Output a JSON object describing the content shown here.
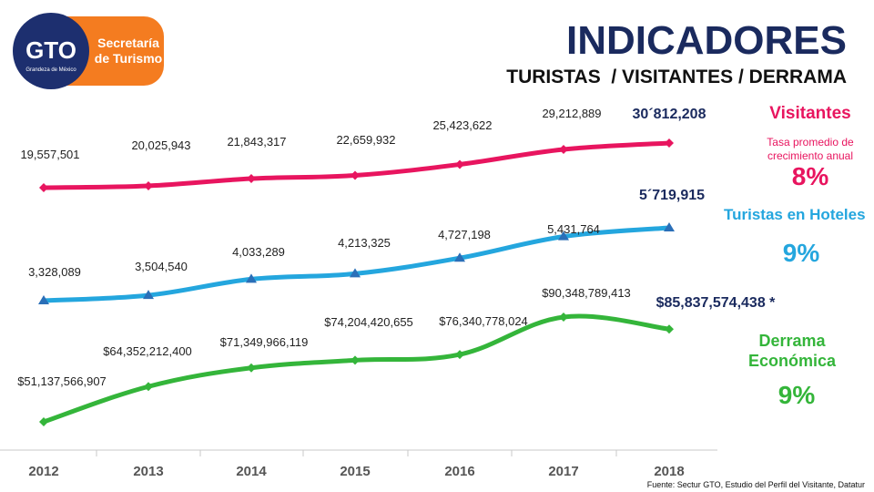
{
  "header": {
    "title": "INDICADORES",
    "subtitle": "TURISTAS  / VISITANTES / DERRAMA"
  },
  "logo": {
    "mark": "GTO",
    "tagline": "Grandeza de México",
    "line1": "Secretaría",
    "line2": "de Turismo"
  },
  "colors": {
    "visitantes": "#e8155f",
    "turistas": "#24a6de",
    "derrama": "#34b53a",
    "title": "#1a2a5e",
    "logo_orange": "#f47c20",
    "logo_navy": "#1d2f6f"
  },
  "side_panel": {
    "visitantes_label": "Visitantes",
    "visitantes_note": "Tasa promedio de crecimiento anual",
    "visitantes_pct": "8%",
    "turistas_label": "Turistas en Hoteles",
    "turistas_pct": "9%",
    "derrama_label": "Derrama Económica",
    "derrama_pct": "9%"
  },
  "footer": {
    "source": "Fuente: Sectur GTO, Estudio del Perfil del Visitante, Datatur"
  },
  "chart_data": {
    "type": "line",
    "categories": [
      "2012",
      "2013",
      "2014",
      "2015",
      "2016",
      "2017",
      "2018"
    ],
    "series": [
      {
        "name": "Visitantes",
        "values": [
          19557501,
          20025943,
          21843317,
          22659932,
          25423622,
          29212889,
          30812208
        ],
        "labels": [
          "19,557,501",
          "20,025,943",
          "21,843,317",
          "22,659,932",
          "25,423,622",
          "29,212,889",
          "30´812,208"
        ],
        "marker": "diamond"
      },
      {
        "name": "Turistas en Hoteles",
        "values": [
          3328089,
          3504540,
          4033289,
          4213325,
          4727198,
          5431764,
          5719915
        ],
        "labels": [
          "3,328,089",
          "3,504,540",
          "4,033,289",
          "4,213,325",
          "4,727,198",
          "5,431,764",
          "5´719,915"
        ],
        "marker": "triangle"
      },
      {
        "name": "Derrama Económica",
        "values": [
          51137566907,
          64352212400,
          71349966119,
          74204420655,
          76340778024,
          90348789413,
          85837574438
        ],
        "labels": [
          "$51,137,566,907",
          "$64,352,212,400",
          "$71,349,966,119",
          "$74,204,420,655",
          "$76,340,778,024",
          "$90,348,789,413",
          "$85,837,574,438 *"
        ],
        "marker": "diamond"
      }
    ]
  }
}
